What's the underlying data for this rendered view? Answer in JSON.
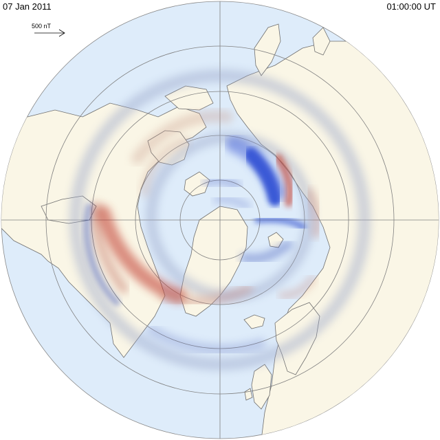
{
  "header": {
    "date": "07 Jan 2011",
    "time": "01:00:00  UT"
  },
  "scale": {
    "label": "500 nT"
  },
  "colors": {
    "ocean": "#deecfa",
    "land": "#faf6e6",
    "coast": "#6e6e6e",
    "grid": "#7f7f7f",
    "positive": "#c0392b",
    "negative": "#1f3fd0"
  }
}
